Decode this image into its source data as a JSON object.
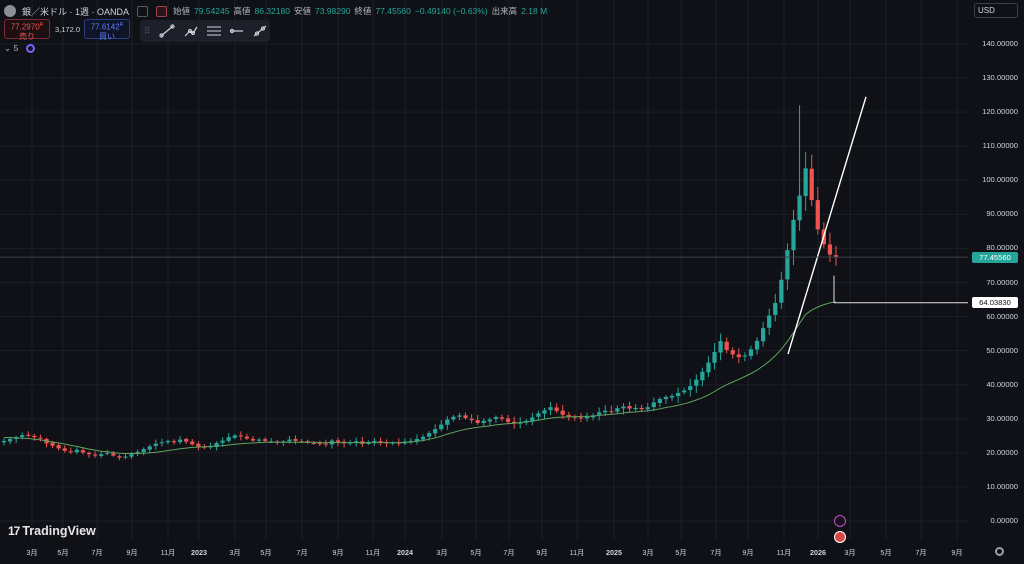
{
  "header": {
    "symbol": "銀／米ドル · 1週 · OANDA",
    "open_label": "始値",
    "open_value": "79.54245",
    "high_label": "高値",
    "high_value": "86.32180",
    "low_label": "安値",
    "low_value": "73.98290",
    "close_label": "終値",
    "close_value": "77.45560",
    "change": "−0.49140 (−0.63%)",
    "volume_label": "出来高",
    "volume_value": "2.18 M"
  },
  "trade": {
    "sell_price": "77.2970",
    "sell_price_sup": "R",
    "sell_label": "売り",
    "spread": "3,172.0",
    "buy_price": "77.6142",
    "buy_price_sup": "R",
    "buy_label": "買い"
  },
  "indicators": {
    "count": "5"
  },
  "currency_select": "USD",
  "logo_text": "TradingView",
  "colors": {
    "background": "#0f1117",
    "up": "#26a69a",
    "down": "#ef5350",
    "ma_line": "#5fa35f",
    "trend_line": "#ffffff",
    "grid": "#1c1f27"
  },
  "chart_data": {
    "type": "candlestick",
    "timeframe": "1週",
    "y_tick_labels": [
      "140.00000",
      "130.00000",
      "120.00000",
      "110.00000",
      "100.00000",
      "90.00000",
      "80.00000",
      "70.00000",
      "60.00000",
      "50.00000",
      "40.00000",
      "30.00000",
      "20.00000",
      "10.00000",
      "0.00000"
    ],
    "ylim": [
      -3,
      145
    ],
    "x_tick_labels": [
      "3月",
      "5月",
      "7月",
      "9月",
      "11月",
      "2023",
      "3月",
      "5月",
      "7月",
      "9月",
      "11月",
      "2024",
      "3月",
      "5月",
      "7月",
      "9月",
      "11月",
      "2025",
      "3月",
      "5月",
      "7月",
      "9月",
      "11月",
      "2026",
      "3月",
      "5月",
      "7月",
      "9月"
    ],
    "bold_x_ticks": [
      "2023",
      "2024",
      "2025",
      "2026"
    ],
    "current_price": "77.45560",
    "horizontal_line_price": "64.03830",
    "close_series": [
      23.5,
      24.1,
      24.6,
      25.2,
      25.0,
      24.6,
      24.2,
      22.8,
      22.1,
      21.3,
      20.6,
      20.3,
      20.9,
      20.1,
      19.6,
      19.2,
      19.6,
      20.0,
      19.2,
      18.6,
      18.9,
      19.6,
      20.3,
      21.1,
      21.9,
      22.7,
      23.1,
      23.5,
      23.1,
      23.9,
      23.3,
      22.5,
      21.8,
      21.5,
      21.9,
      22.9,
      23.6,
      24.6,
      25.1,
      24.9,
      24.2,
      23.6,
      23.9,
      23.5,
      23.4,
      23.1,
      23.4,
      23.9,
      23.5,
      23.3,
      23.0,
      22.8,
      22.7,
      22.5,
      23.6,
      23.2,
      22.8,
      23.0,
      23.4,
      22.6,
      22.9,
      23.5,
      23.2,
      22.8,
      23.0,
      22.9,
      23.3,
      23.5,
      24.1,
      24.7,
      25.8,
      27.0,
      28.3,
      29.8,
      30.6,
      31.0,
      30.2,
      29.6,
      28.8,
      29.4,
      29.8,
      30.5,
      30.0,
      29.1,
      28.6,
      28.9,
      29.4,
      30.4,
      31.6,
      32.5,
      33.4,
      32.3,
      31.2,
      30.6,
      30.3,
      30.1,
      30.6,
      31.0,
      31.9,
      32.4,
      32.2,
      33.1,
      33.6,
      33.0,
      33.2,
      32.8,
      33.4,
      34.8,
      35.8,
      36.4,
      36.7,
      37.6,
      38.3,
      39.6,
      41.5,
      43.8,
      46.5,
      49.6,
      52.8,
      50.2,
      48.9,
      48.1,
      48.6,
      50.4,
      52.9,
      56.6,
      60.3,
      64.0,
      70.8,
      79.5,
      88.4,
      95.5,
      103.5,
      94.2,
      85.6,
      81.2,
      78.2,
      77.46
    ],
    "ma_series": [
      24.5,
      24.5,
      24.4,
      24.3,
      24.2,
      24.0,
      23.8,
      23.5,
      23.2,
      22.9,
      22.6,
      22.2,
      21.9,
      21.5,
      21.1,
      20.8,
      20.5,
      20.3,
      20.1,
      19.9,
      19.8,
      19.8,
      19.8,
      19.9,
      20.0,
      20.2,
      20.4,
      20.7,
      20.9,
      21.2,
      21.4,
      21.6,
      21.7,
      21.8,
      21.9,
      22.0,
      22.1,
      22.3,
      22.5,
      22.7,
      22.8,
      22.9,
      23.0,
      23.1,
      23.1,
      23.1,
      23.1,
      23.1,
      23.1,
      23.1,
      23.1,
      23.1,
      23.0,
      23.0,
      23.0,
      23.0,
      23.0,
      23.0,
      23.0,
      23.0,
      23.0,
      23.0,
      23.0,
      23.0,
      23.0,
      23.0,
      23.1,
      23.2,
      23.4,
      23.6,
      24.0,
      24.4,
      24.9,
      25.5,
      26.0,
      26.5,
      26.9,
      27.2,
      27.5,
      27.7,
      27.9,
      28.2,
      28.4,
      28.6,
      28.7,
      28.9,
      29.1,
      29.3,
      29.6,
      29.9,
      30.2,
      30.4,
      30.5,
      30.6,
      30.6,
      30.7,
      30.7,
      30.8,
      31.0,
      31.2,
      31.3,
      31.5,
      31.7,
      31.9,
      32.0,
      32.2,
      32.3,
      32.6,
      32.9,
      33.3,
      33.6,
      34.0,
      34.4,
      34.9,
      35.5,
      36.2,
      37.0,
      38.0,
      39.1,
      40.0,
      40.8,
      41.6,
      42.4,
      43.3,
      44.3,
      45.5,
      46.9,
      48.5,
      50.4,
      52.7,
      55.3,
      58.0,
      60.6,
      61.9,
      62.8,
      63.5,
      64.0,
      64.3
    ]
  }
}
